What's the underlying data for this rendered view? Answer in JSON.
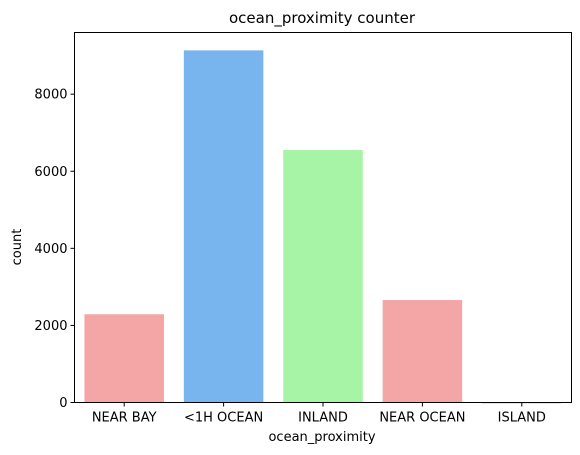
{
  "chart_data": {
    "type": "bar",
    "title": "ocean_proximity counter",
    "xlabel": "ocean_proximity",
    "ylabel": "count",
    "categories": [
      "NEAR BAY",
      "<1H OCEAN",
      "INLAND",
      "NEAR OCEAN",
      "ISLAND"
    ],
    "values": [
      2290,
      9136,
      6551,
      2658,
      5
    ],
    "colors": [
      "#f4a6a6",
      "#78b4ee",
      "#a8f4a6",
      "#f4a6a6",
      "#78b4ee"
    ],
    "ylim": [
      0,
      9600
    ],
    "yticks": [
      0,
      2000,
      4000,
      6000,
      8000
    ],
    "ytick_labels": [
      "0",
      "2000",
      "4000",
      "6000",
      "8000"
    ],
    "grid": false,
    "legend": "none"
  }
}
